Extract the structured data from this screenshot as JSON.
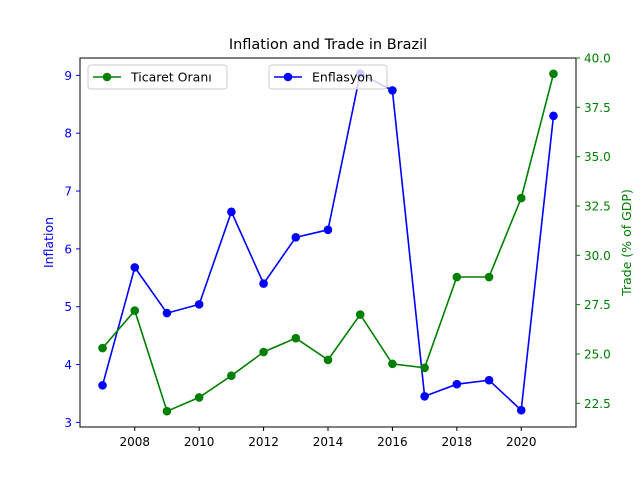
{
  "chart_data": {
    "type": "line",
    "title": "Inflation and Trade in Brazil",
    "xlabel": "",
    "x": [
      2007,
      2008,
      2009,
      2010,
      2011,
      2012,
      2013,
      2014,
      2015,
      2016,
      2017,
      2018,
      2019,
      2020,
      2021
    ],
    "x_ticks": [
      2008,
      2010,
      2012,
      2014,
      2016,
      2018,
      2020
    ],
    "xlim": [
      2006.3,
      2021.7
    ],
    "y_left": {
      "label": "Inflation",
      "color": "#0000ff",
      "lim": [
        2.92,
        9.3
      ],
      "ticks": [
        3,
        4,
        5,
        6,
        7,
        8,
        9
      ]
    },
    "y_right": {
      "label": "Trade (% of GDP)",
      "color": "#008000",
      "lim": [
        21.3,
        40.0
      ],
      "ticks": [
        "22.5",
        "25.0",
        "27.5",
        "30.0",
        "32.5",
        "35.0",
        "37.5",
        "40.0"
      ]
    },
    "series": [
      {
        "name": "Enflasyon",
        "axis": "left",
        "color": "#0000ff",
        "values": [
          3.64,
          5.68,
          4.89,
          5.04,
          6.64,
          5.4,
          6.2,
          6.33,
          9.03,
          8.74,
          3.45,
          3.66,
          3.73,
          3.21,
          8.3
        ]
      },
      {
        "name": "Ticaret Oranı",
        "axis": "right",
        "color": "#008000",
        "values": [
          25.3,
          27.2,
          22.1,
          22.8,
          23.9,
          25.1,
          25.8,
          24.7,
          27.0,
          24.5,
          24.3,
          28.9,
          28.9,
          32.9,
          39.2
        ]
      }
    ],
    "legends": [
      {
        "series": "Ticaret Oranı",
        "placement": "upper-left"
      },
      {
        "series": "Enflasyon",
        "placement": "upper-center"
      }
    ],
    "grid": false
  }
}
